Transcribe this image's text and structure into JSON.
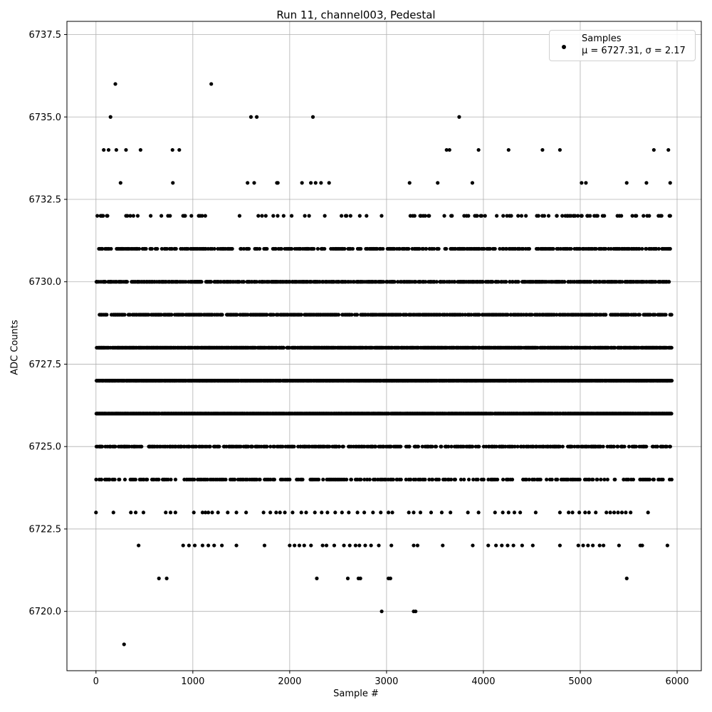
{
  "chart_data": {
    "type": "scatter",
    "title": "Run 11, channel003, Pedestal",
    "xlabel": "Sample #",
    "ylabel": "ADC Counts",
    "xlim": [
      -300,
      6250
    ],
    "ylim": [
      6718.2,
      6737.9
    ],
    "xticks": [
      0,
      1000,
      2000,
      3000,
      4000,
      5000,
      6000
    ],
    "yticks": [
      6720.0,
      6722.5,
      6725.0,
      6727.5,
      6730.0,
      6732.5,
      6735.0,
      6737.5
    ],
    "xtick_labels": [
      "0",
      "1000",
      "2000",
      "3000",
      "4000",
      "5000",
      "6000"
    ],
    "ytick_labels": [
      "6720.0",
      "6722.5",
      "6725.0",
      "6727.5",
      "6730.0",
      "6732.5",
      "6735.0",
      "6737.5"
    ],
    "grid": true,
    "legend": {
      "placement": "top-right",
      "entries": [
        "Samples",
        "μ = 6727.31, σ = 2.17"
      ]
    },
    "color": "#000000",
    "series": [
      {
        "name": "Samples",
        "x_range": [
          0,
          5940
        ],
        "mean": 6727.31,
        "std": 2.17,
        "points_outer": [
          [
            290,
            6719
          ],
          [
            2950,
            6720
          ],
          [
            3280,
            6720
          ],
          [
            3300,
            6720
          ],
          [
            650,
            6721
          ],
          [
            730,
            6721
          ],
          [
            2280,
            6721
          ],
          [
            2600,
            6721
          ],
          [
            2710,
            6721
          ],
          [
            2730,
            6721
          ],
          [
            3020,
            6721
          ],
          [
            3040,
            6721
          ],
          [
            5480,
            6721
          ],
          [
            200,
            6736
          ],
          [
            1190,
            6736
          ],
          [
            150,
            6735
          ],
          [
            1600,
            6735
          ],
          [
            1660,
            6735
          ],
          [
            2240,
            6735
          ],
          [
            3750,
            6735
          ],
          [
            80,
            6734
          ],
          [
            130,
            6734
          ],
          [
            210,
            6734
          ],
          [
            310,
            6734
          ],
          [
            460,
            6734
          ],
          [
            790,
            6734
          ],
          [
            860,
            6734
          ],
          [
            3620,
            6734
          ],
          [
            3650,
            6734
          ],
          [
            3950,
            6734
          ],
          [
            4260,
            6734
          ],
          [
            4610,
            6734
          ],
          [
            4790,
            6734
          ],
          [
            5760,
            6734
          ],
          [
            5910,
            6734
          ]
        ],
        "points_722": [
          440,
          900,
          960,
          1020,
          1100,
          1160,
          1220,
          1300,
          1450,
          1740,
          2000,
          2050,
          2100,
          2150,
          2220,
          2340,
          2380,
          2460,
          2560,
          2620,
          2680,
          2720,
          2780,
          2840,
          2920,
          3050,
          3280,
          3320,
          3580,
          3890,
          4050,
          4130,
          4190,
          4250,
          4310,
          4400,
          4510,
          4790,
          4980,
          5030,
          5080,
          5130,
          5200,
          5240,
          5400,
          5620,
          5640,
          5900
        ],
        "points_723": [
          0,
          180,
          360,
          410,
          490,
          720,
          770,
          820,
          1010,
          1100,
          1130,
          1160,
          1200,
          1260,
          1360,
          1450,
          1550,
          1730,
          1800,
          1860,
          1900,
          1950,
          2030,
          2120,
          2170,
          2260,
          2330,
          2390,
          2470,
          2540,
          2610,
          2700,
          2770,
          2860,
          2940,
          3020,
          3060,
          3230,
          3280,
          3350,
          3460,
          3570,
          3660,
          3840,
          3950,
          4120,
          4200,
          4260,
          4320,
          4380,
          4540,
          4790,
          4880,
          4920,
          4990,
          5050,
          5090,
          5160,
          5270,
          5310,
          5350,
          5390,
          5430,
          5470,
          5520,
          5700
        ]
      }
    ]
  }
}
